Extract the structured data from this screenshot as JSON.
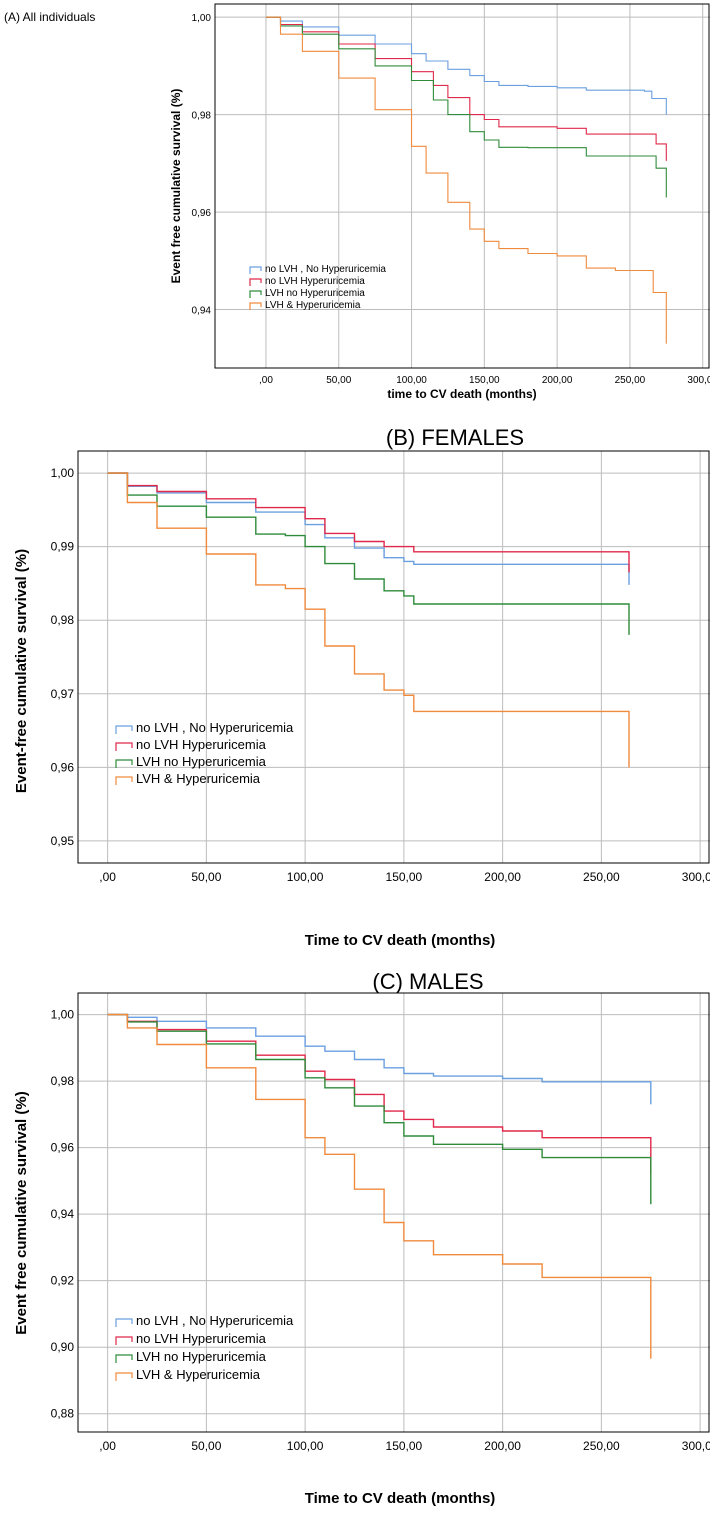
{
  "chart_data": [
    {
      "id": "A",
      "type": "line",
      "step": true,
      "panel_label": "(A) All individuals",
      "title": "",
      "xlabel": "time to CV death (months)",
      "ylabel": "Event free cumulative survival (%)",
      "xlim": [
        -35,
        305
      ],
      "ylim": [
        0.928,
        1.0027
      ],
      "xticks": [
        0,
        50,
        100,
        150,
        200,
        250,
        300
      ],
      "xtick_labels": [
        ",00",
        "50,00",
        "100,00",
        "150,00",
        "200,00",
        "250,00",
        "300,00"
      ],
      "yticks": [
        0.94,
        0.96,
        0.98,
        1.0
      ],
      "ytick_labels": [
        "0,94",
        "0,96",
        "0,98",
        "1,00"
      ],
      "grid": true,
      "legend_position": "lower-left",
      "series": [
        {
          "name": "no LVH , No Hyperuricemia",
          "color": "#6a9fe0",
          "points": [
            [
              0,
              1.0
            ],
            [
              10,
              0.9992
            ],
            [
              25,
              0.998
            ],
            [
              50,
              0.9963
            ],
            [
              75,
              0.9945
            ],
            [
              100,
              0.9925
            ],
            [
              110,
              0.991
            ],
            [
              125,
              0.9893
            ],
            [
              140,
              0.988
            ],
            [
              150,
              0.9868
            ],
            [
              160,
              0.986
            ],
            [
              180,
              0.9858
            ],
            [
              200,
              0.9855
            ],
            [
              220,
              0.985
            ],
            [
              260,
              0.9848
            ],
            [
              265,
              0.9833
            ],
            [
              275,
              0.9833
            ],
            [
              275,
              0.98
            ]
          ]
        },
        {
          "name": "no LVH Hyperuricemia",
          "color": "#e0284a",
          "points": [
            [
              0,
              1.0
            ],
            [
              10,
              0.9985
            ],
            [
              25,
              0.997
            ],
            [
              50,
              0.9945
            ],
            [
              75,
              0.9915
            ],
            [
              100,
              0.9888
            ],
            [
              115,
              0.986
            ],
            [
              125,
              0.9835
            ],
            [
              140,
              0.98
            ],
            [
              150,
              0.979
            ],
            [
              160,
              0.9775
            ],
            [
              180,
              0.9775
            ],
            [
              200,
              0.9772
            ],
            [
              220,
              0.976
            ],
            [
              265,
              0.976
            ],
            [
              268,
              0.974
            ],
            [
              275,
              0.974
            ],
            [
              275,
              0.9705
            ]
          ]
        },
        {
          "name": "LVH  no Hyperuricemia",
          "color": "#2e8b3a",
          "points": [
            [
              0,
              1.0
            ],
            [
              10,
              0.9982
            ],
            [
              25,
              0.9965
            ],
            [
              50,
              0.9935
            ],
            [
              75,
              0.99
            ],
            [
              100,
              0.987
            ],
            [
              115,
              0.983
            ],
            [
              125,
              0.98
            ],
            [
              140,
              0.9765
            ],
            [
              150,
              0.9748
            ],
            [
              160,
              0.9733
            ],
            [
              180,
              0.9732
            ],
            [
              200,
              0.9732
            ],
            [
              220,
              0.9715
            ],
            [
              265,
              0.9715
            ],
            [
              268,
              0.969
            ],
            [
              275,
              0.969
            ],
            [
              275,
              0.963
            ]
          ]
        },
        {
          "name": "LVH & Hyperuricemia",
          "color": "#f08a3c",
          "points": [
            [
              0,
              1.0
            ],
            [
              10,
              0.9965
            ],
            [
              25,
              0.993
            ],
            [
              50,
              0.9875
            ],
            [
              75,
              0.981
            ],
            [
              100,
              0.9735
            ],
            [
              110,
              0.968
            ],
            [
              125,
              0.962
            ],
            [
              140,
              0.9565
            ],
            [
              150,
              0.954
            ],
            [
              160,
              0.9525
            ],
            [
              180,
              0.9515
            ],
            [
              200,
              0.951
            ],
            [
              220,
              0.9485
            ],
            [
              240,
              0.948
            ],
            [
              265,
              0.948
            ],
            [
              266,
              0.9435
            ],
            [
              275,
              0.9435
            ],
            [
              275,
              0.933
            ]
          ]
        }
      ]
    },
    {
      "id": "B",
      "type": "line",
      "step": true,
      "panel_label": "",
      "title": "(B) FEMALES",
      "xlabel": "Time to CV death (months)",
      "ylabel": "Event-free cumulative survival (%)",
      "xlim": [
        -15,
        305
      ],
      "ylim": [
        0.947,
        1.003
      ],
      "xticks": [
        0,
        50,
        100,
        150,
        200,
        250,
        300
      ],
      "xtick_labels": [
        ",00",
        "50,00",
        "100,00",
        "150,00",
        "200,00",
        "250,00",
        "300,00"
      ],
      "yticks": [
        0.95,
        0.96,
        0.97,
        0.98,
        0.99,
        1.0
      ],
      "ytick_labels": [
        "0,95",
        "0,96",
        "0,97",
        "0,98",
        "0,99",
        "1,00"
      ],
      "grid": true,
      "legend_position": "lower-left",
      "series": [
        {
          "name": "no LVH , No Hyperuricemia",
          "color": "#6a9fe0",
          "points": [
            [
              0,
              1.0
            ],
            [
              10,
              0.9982
            ],
            [
              25,
              0.9973
            ],
            [
              50,
              0.996
            ],
            [
              75,
              0.9947
            ],
            [
              100,
              0.993
            ],
            [
              110,
              0.9912
            ],
            [
              125,
              0.9898
            ],
            [
              140,
              0.9885
            ],
            [
              150,
              0.988
            ],
            [
              155,
              0.9876
            ],
            [
              200,
              0.9876
            ],
            [
              264,
              0.9876
            ],
            [
              264,
              0.9848
            ]
          ]
        },
        {
          "name": "no LVH Hyperuricemia",
          "color": "#e0284a",
          "points": [
            [
              0,
              1.0
            ],
            [
              10,
              0.9983
            ],
            [
              25,
              0.9975
            ],
            [
              50,
              0.9965
            ],
            [
              75,
              0.9953
            ],
            [
              100,
              0.9938
            ],
            [
              110,
              0.9918
            ],
            [
              125,
              0.9907
            ],
            [
              140,
              0.99
            ],
            [
              150,
              0.99
            ],
            [
              155,
              0.9893
            ],
            [
              200,
              0.9893
            ],
            [
              264,
              0.9893
            ],
            [
              264,
              0.9865
            ]
          ]
        },
        {
          "name": "LVH  no Hyperuricemia",
          "color": "#2e8b3a",
          "points": [
            [
              0,
              1.0
            ],
            [
              10,
              0.997
            ],
            [
              25,
              0.9955
            ],
            [
              50,
              0.994
            ],
            [
              75,
              0.9917
            ],
            [
              90,
              0.9915
            ],
            [
              100,
              0.99
            ],
            [
              110,
              0.9877
            ],
            [
              125,
              0.9856
            ],
            [
              140,
              0.984
            ],
            [
              150,
              0.9833
            ],
            [
              155,
              0.9822
            ],
            [
              200,
              0.9822
            ],
            [
              264,
              0.9822
            ],
            [
              264,
              0.978
            ]
          ]
        },
        {
          "name": "LVH & Hyperuricemia",
          "color": "#f08a3c",
          "points": [
            [
              0,
              1.0
            ],
            [
              10,
              0.996
            ],
            [
              25,
              0.9925
            ],
            [
              50,
              0.989
            ],
            [
              75,
              0.9848
            ],
            [
              90,
              0.9843
            ],
            [
              100,
              0.9815
            ],
            [
              110,
              0.9765
            ],
            [
              125,
              0.9727
            ],
            [
              140,
              0.9705
            ],
            [
              150,
              0.9698
            ],
            [
              155,
              0.9676
            ],
            [
              200,
              0.9676
            ],
            [
              264,
              0.9676
            ],
            [
              264,
              0.96
            ]
          ]
        }
      ]
    },
    {
      "id": "C",
      "type": "line",
      "step": true,
      "panel_label": "",
      "title": "(C) MALES",
      "xlabel": "Time to CV death (months)",
      "ylabel": "Event free cumulative survival (%)",
      "xlim": [
        -15,
        305
      ],
      "ylim": [
        0.8745,
        1.0065
      ],
      "xticks": [
        0,
        50,
        100,
        150,
        200,
        250,
        300
      ],
      "xtick_labels": [
        ",00",
        "50,00",
        "100,00",
        "150,00",
        "200,00",
        "250,00",
        "300,00"
      ],
      "yticks": [
        0.88,
        0.9,
        0.92,
        0.94,
        0.96,
        0.98,
        1.0
      ],
      "ytick_labels": [
        "0,88",
        "0,90",
        "0,92",
        "0,94",
        "0,96",
        "0,98",
        "1,00"
      ],
      "grid": true,
      "legend_position": "lower-left",
      "series": [
        {
          "name": "no LVH , No Hyperuricemia",
          "color": "#6a9fe0",
          "points": [
            [
              0,
              1.0
            ],
            [
              10,
              0.9992
            ],
            [
              25,
              0.998
            ],
            [
              50,
              0.996
            ],
            [
              75,
              0.9935
            ],
            [
              100,
              0.9905
            ],
            [
              110,
              0.989
            ],
            [
              125,
              0.9865
            ],
            [
              140,
              0.984
            ],
            [
              150,
              0.9823
            ],
            [
              165,
              0.9815
            ],
            [
              200,
              0.9808
            ],
            [
              220,
              0.9798
            ],
            [
              250,
              0.9798
            ],
            [
              275,
              0.9798
            ],
            [
              275,
              0.973
            ]
          ]
        },
        {
          "name": "no LVH Hyperuricemia",
          "color": "#e0284a",
          "points": [
            [
              0,
              1.0
            ],
            [
              10,
              0.998
            ],
            [
              25,
              0.9955
            ],
            [
              50,
              0.992
            ],
            [
              75,
              0.9878
            ],
            [
              100,
              0.983
            ],
            [
              110,
              0.9805
            ],
            [
              125,
              0.976
            ],
            [
              140,
              0.971
            ],
            [
              150,
              0.9685
            ],
            [
              165,
              0.9662
            ],
            [
              200,
              0.965
            ],
            [
              220,
              0.963
            ],
            [
              250,
              0.963
            ],
            [
              275,
              0.963
            ],
            [
              275,
              0.952
            ]
          ]
        },
        {
          "name": "LVH  no Hyperuricemia",
          "color": "#2e8b3a",
          "points": [
            [
              0,
              1.0
            ],
            [
              10,
              0.9978
            ],
            [
              25,
              0.995
            ],
            [
              50,
              0.9912
            ],
            [
              75,
              0.9865
            ],
            [
              100,
              0.981
            ],
            [
              110,
              0.978
            ],
            [
              125,
              0.9725
            ],
            [
              140,
              0.9675
            ],
            [
              150,
              0.9635
            ],
            [
              165,
              0.961
            ],
            [
              200,
              0.9595
            ],
            [
              220,
              0.957
            ],
            [
              250,
              0.957
            ],
            [
              275,
              0.957
            ],
            [
              275,
              0.943
            ]
          ]
        },
        {
          "name": "LVH & Hyperuricemia",
          "color": "#f08a3c",
          "points": [
            [
              0,
              1.0
            ],
            [
              10,
              0.996
            ],
            [
              25,
              0.991
            ],
            [
              50,
              0.984
            ],
            [
              75,
              0.9745
            ],
            [
              100,
              0.963
            ],
            [
              110,
              0.958
            ],
            [
              125,
              0.9475
            ],
            [
              140,
              0.9375
            ],
            [
              150,
              0.932
            ],
            [
              165,
              0.9278
            ],
            [
              200,
              0.925
            ],
            [
              220,
              0.921
            ],
            [
              250,
              0.921
            ],
            [
              275,
              0.921
            ],
            [
              275,
              0.8965
            ]
          ]
        }
      ]
    }
  ]
}
